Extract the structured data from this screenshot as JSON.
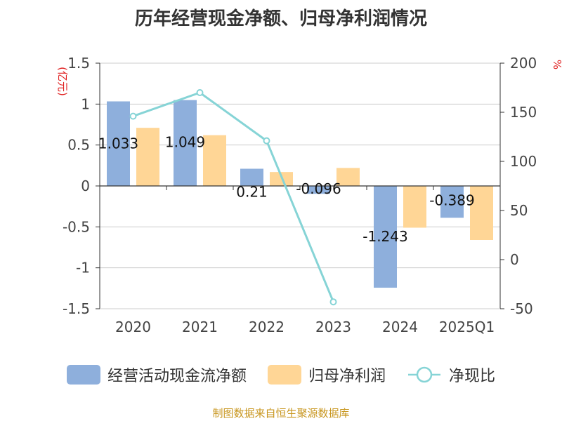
{
  "title": "历年经营现金净额、归母净利润情况",
  "colors": {
    "cash": "#8eafdc",
    "profit": "#ffd696",
    "ratio": "#86d4d6"
  },
  "chart_data": {
    "type": "bar",
    "categories": [
      "2020",
      "2021",
      "2022",
      "2023",
      "2024",
      "2025Q1"
    ],
    "series": [
      {
        "name": "经营活动现金流净额",
        "type": "bar",
        "axis": "left",
        "values": [
          1.033,
          1.049,
          0.21,
          -0.096,
          -1.243,
          -0.389
        ],
        "labels": [
          "1.033",
          "1.049",
          "0.21",
          "-0.096",
          "-1.243",
          "-0.389"
        ]
      },
      {
        "name": "归母净利润",
        "type": "bar",
        "axis": "left",
        "values": [
          0.71,
          0.62,
          0.17,
          0.22,
          -0.51,
          -0.66
        ]
      },
      {
        "name": "净现比",
        "type": "line",
        "axis": "right",
        "values": [
          146,
          170,
          121,
          -43,
          null,
          null
        ]
      }
    ],
    "yleft": {
      "label": "(亿元)",
      "ylim": [
        -1.5,
        1.5
      ],
      "ticks": [
        1.5,
        1,
        0.5,
        0,
        -0.5,
        -1,
        -1.5
      ],
      "tick_labels": [
        "1.5",
        "1",
        "0.5",
        "0",
        "-0.5",
        "-1",
        "-1.5"
      ]
    },
    "yright": {
      "label": "%",
      "ylim": [
        -50,
        200
      ],
      "ticks": [
        200,
        150,
        100,
        50,
        0,
        -50
      ],
      "tick_labels": [
        "200",
        "150",
        "100",
        "50",
        "0",
        "-50"
      ]
    },
    "grid": true,
    "legend_position": "bottom"
  },
  "legend": [
    {
      "label": "经营活动现金流净额",
      "icon": "bar-swatch"
    },
    {
      "label": "归母净利润",
      "icon": "bar-swatch"
    },
    {
      "label": "净现比",
      "icon": "line-circle-swatch"
    }
  ],
  "source": "制图数据来自恒生聚源数据库"
}
